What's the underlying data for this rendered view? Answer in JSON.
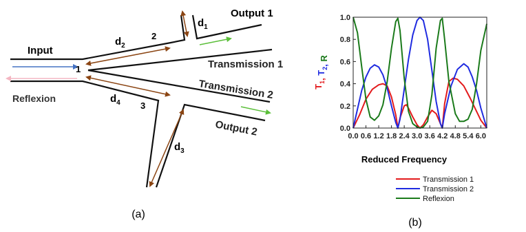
{
  "panel_a": {
    "caption": "(a)",
    "labels": {
      "input": "Input",
      "reflexion": "Reflexion",
      "output1": "Output 1",
      "output2": "Output 2",
      "transmission1": "Transmission 1",
      "transmission2": "Transmission 2",
      "d1": "d",
      "d1_sub": "1",
      "d2": "d",
      "d2_sub": "2",
      "d3": "d",
      "d3_sub": "3",
      "d4": "d",
      "d4_sub": "4",
      "node1": "1",
      "node2": "2",
      "node3": "3"
    },
    "colors": {
      "waveguide": "#111111",
      "segment_arrow": "#8B4513",
      "input_arrow": "#4472C4",
      "reflexion_arrow": "#F4B6C2",
      "output_arrow": "#5BBF3A"
    }
  },
  "panel_b": {
    "caption": "(b)",
    "chart_data": {
      "type": "line",
      "xlabel": "Reduced Frequency",
      "ylabel_parts": [
        {
          "text": "T",
          "sub": "1",
          "color": "#E31A1C"
        },
        {
          "text": ", ",
          "sub": "",
          "color": "#E31A1C"
        },
        {
          "text": "T",
          "sub": "2",
          "color": "#1F2BE0"
        },
        {
          "text": ", ",
          "sub": "",
          "color": "#1F2BE0"
        },
        {
          "text": "R",
          "sub": "",
          "color": "#1A7A1A"
        }
      ],
      "xlim": [
        0,
        6.28
      ],
      "ylim": [
        0,
        1.0
      ],
      "xticks": [
        "0.0",
        "0.6",
        "1.2",
        "1.8",
        "2.4",
        "3.0",
        "3.6",
        "4.2",
        "4.8",
        "5.4",
        "6.0"
      ],
      "yticks": [
        "0.0",
        "0.2",
        "0.4",
        "0.6",
        "0.8",
        "1.0"
      ],
      "legend_position": "bottom",
      "series": [
        {
          "name": "Transmission 1",
          "color": "#E31A1C",
          "x": [
            0.0,
            0.3,
            0.6,
            0.9,
            1.2,
            1.4,
            1.6,
            1.8,
            2.0,
            2.1,
            2.2,
            2.4,
            2.5,
            2.6,
            2.8,
            3.0,
            3.14,
            3.3,
            3.5,
            3.7,
            3.9,
            4.1,
            4.19,
            4.3,
            4.5,
            4.7,
            4.9,
            5.2,
            5.5,
            5.8,
            6.0,
            6.28
          ],
          "y": [
            0.0,
            0.12,
            0.26,
            0.35,
            0.39,
            0.4,
            0.38,
            0.28,
            0.12,
            0.0,
            0.09,
            0.2,
            0.21,
            0.18,
            0.1,
            0.03,
            0.0,
            0.03,
            0.1,
            0.16,
            0.13,
            0.04,
            0.0,
            0.22,
            0.42,
            0.45,
            0.44,
            0.38,
            0.27,
            0.15,
            0.07,
            0.0
          ]
        },
        {
          "name": "Transmission 2",
          "color": "#1F2BE0",
          "x": [
            0.0,
            0.2,
            0.4,
            0.6,
            0.8,
            1.0,
            1.2,
            1.4,
            1.6,
            1.8,
            2.0,
            2.1,
            2.2,
            2.4,
            2.6,
            2.8,
            3.0,
            3.14,
            3.3,
            3.5,
            3.7,
            3.9,
            4.1,
            4.19,
            4.3,
            4.6,
            4.9,
            5.2,
            5.4,
            5.6,
            5.8,
            6.0,
            6.28
          ],
          "y": [
            0.0,
            0.17,
            0.34,
            0.46,
            0.54,
            0.57,
            0.55,
            0.48,
            0.36,
            0.2,
            0.05,
            0.0,
            0.08,
            0.35,
            0.62,
            0.84,
            0.97,
            1.0,
            0.97,
            0.8,
            0.52,
            0.24,
            0.04,
            0.0,
            0.13,
            0.38,
            0.53,
            0.58,
            0.55,
            0.46,
            0.34,
            0.18,
            0.0
          ]
        },
        {
          "name": "Reflexion",
          "color": "#1A7A1A",
          "x": [
            0.0,
            0.2,
            0.4,
            0.6,
            0.8,
            1.0,
            1.2,
            1.4,
            1.6,
            1.8,
            2.0,
            2.1,
            2.2,
            2.4,
            2.6,
            2.8,
            3.0,
            3.14,
            3.3,
            3.5,
            3.7,
            3.9,
            4.1,
            4.19,
            4.3,
            4.5,
            4.8,
            5.0,
            5.2,
            5.4,
            5.6,
            5.8,
            6.0,
            6.28
          ],
          "y": [
            1.0,
            0.86,
            0.55,
            0.26,
            0.1,
            0.07,
            0.11,
            0.21,
            0.42,
            0.72,
            0.96,
            0.99,
            0.88,
            0.45,
            0.15,
            0.04,
            0.01,
            0.0,
            0.01,
            0.06,
            0.3,
            0.72,
            0.97,
            0.99,
            0.8,
            0.42,
            0.13,
            0.06,
            0.06,
            0.08,
            0.17,
            0.4,
            0.7,
            0.94
          ]
        }
      ]
    }
  }
}
